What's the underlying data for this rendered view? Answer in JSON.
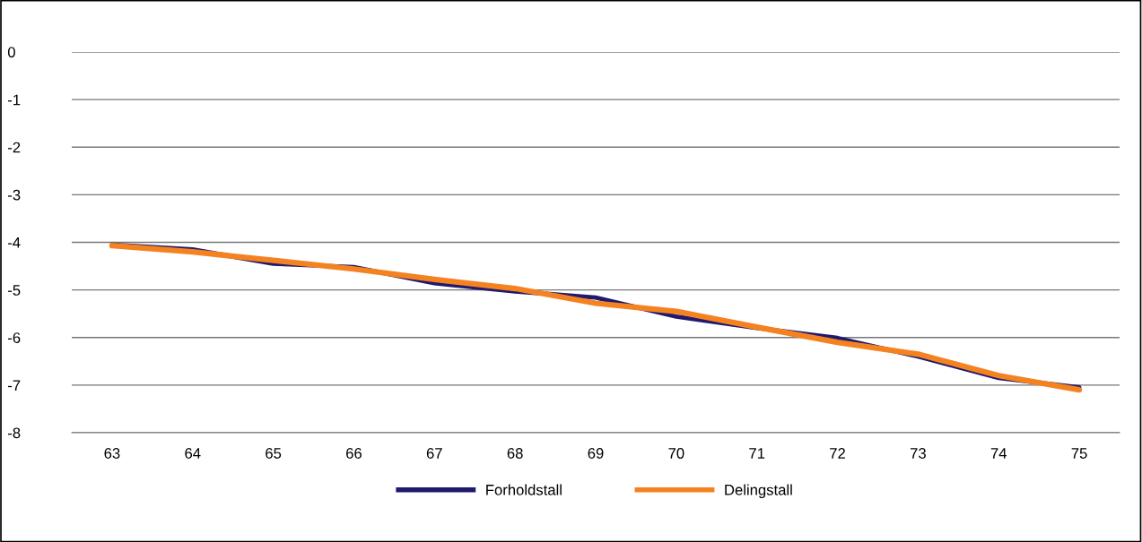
{
  "chart_data": {
    "type": "line",
    "categories": [
      "63",
      "64",
      "65",
      "66",
      "67",
      "68",
      "69",
      "70",
      "71",
      "72",
      "73",
      "74",
      "75"
    ],
    "series": [
      {
        "name": "Forholdstall",
        "color": "#1f1a6e",
        "values": [
          -4.05,
          -4.15,
          -4.45,
          -4.52,
          -4.86,
          -5.03,
          -5.16,
          -5.56,
          -5.8,
          -6.01,
          -6.4,
          -6.85,
          -7.05
        ]
      },
      {
        "name": "Delingstall",
        "color": "#f58220",
        "values": [
          -4.07,
          -4.2,
          -4.38,
          -4.56,
          -4.78,
          -4.97,
          -5.28,
          -5.45,
          -5.78,
          -6.1,
          -6.35,
          -6.8,
          -7.1
        ]
      }
    ],
    "ylim": [
      -8,
      0
    ],
    "yticks": [
      0,
      -1,
      -2,
      -3,
      -4,
      -5,
      -6,
      -7,
      -8
    ],
    "grid": "y",
    "legend": "bottom",
    "marker": "none",
    "line_style": "solid"
  }
}
